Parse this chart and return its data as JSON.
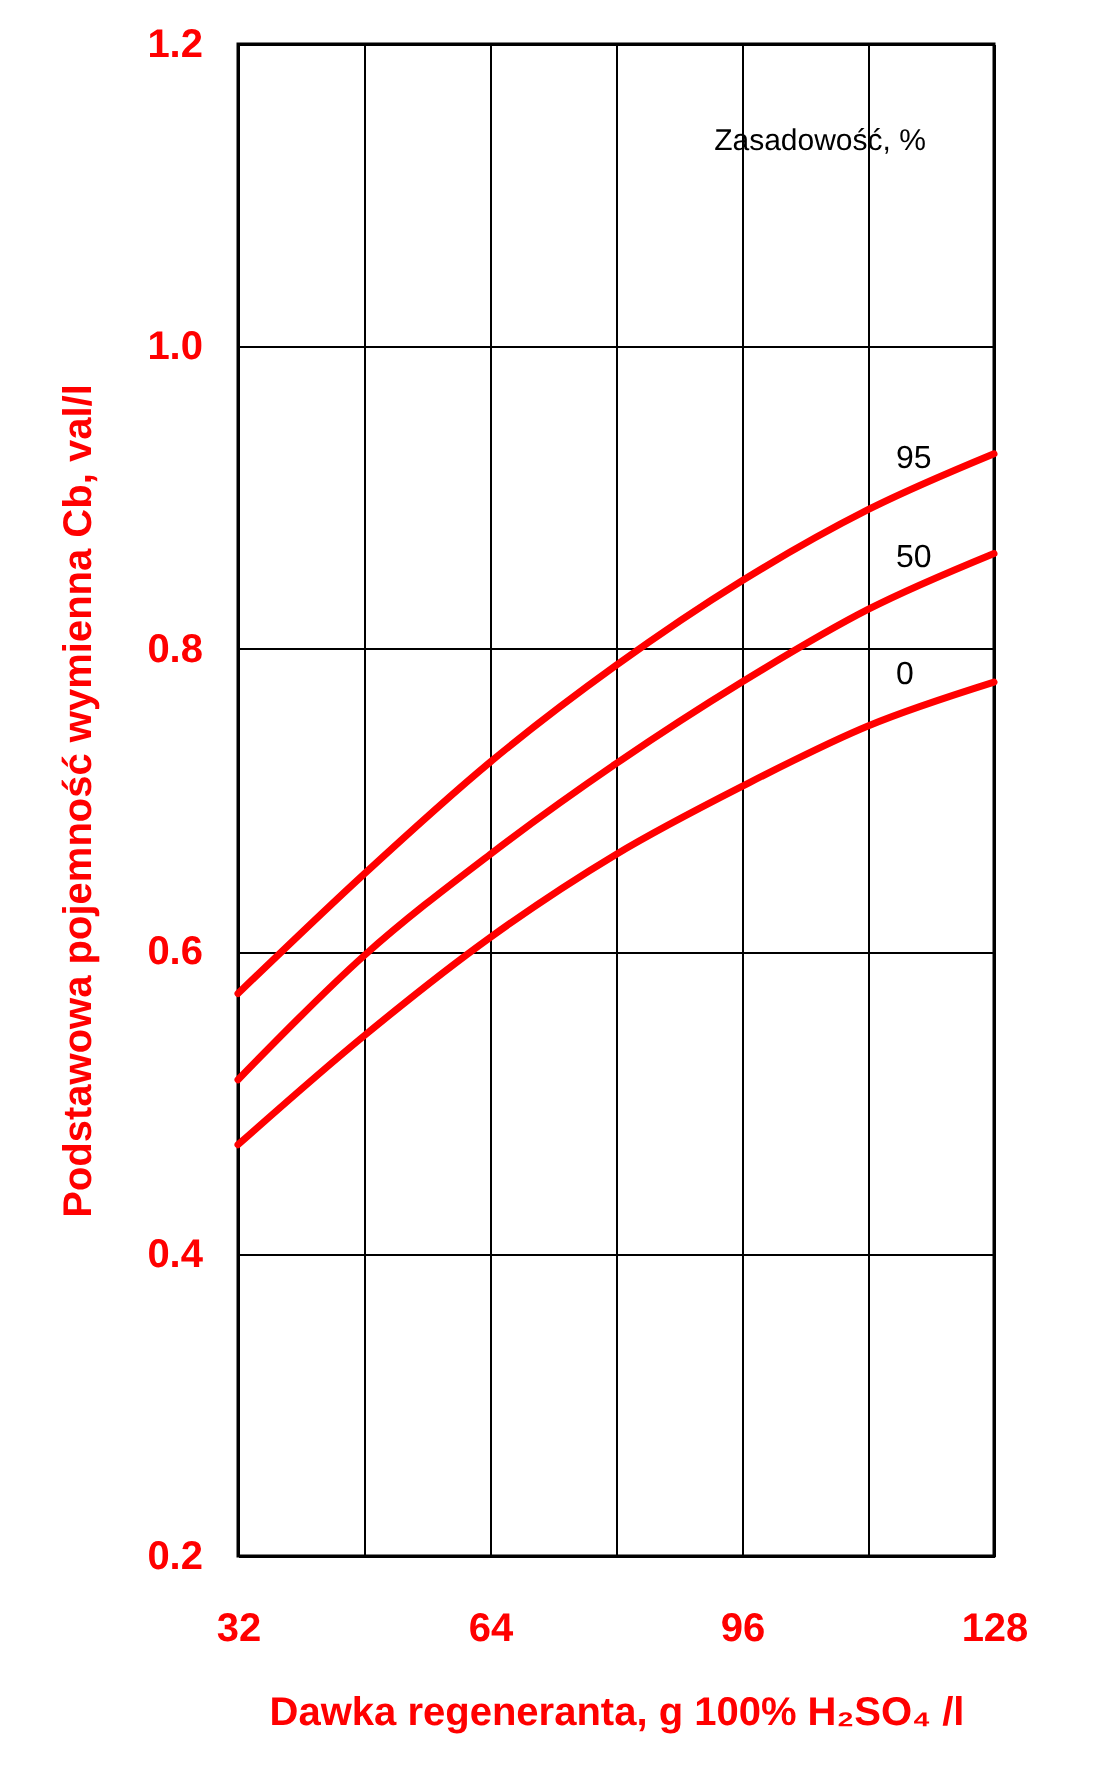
{
  "chart_data": {
    "type": "line",
    "xlabel": "Dawka regeneranta, g 100% H₂SO₄ /l",
    "ylabel": "Podstawowa pojemność wymienna Cb, val/l",
    "legend_title": "Zasadowość, %",
    "x": [
      32,
      48,
      64,
      80,
      96,
      112,
      128
    ],
    "series": [
      {
        "name": "95",
        "color": "#ff0000",
        "values": [
          0.572,
          0.651,
          0.725,
          0.789,
          0.845,
          0.892,
          0.929
        ]
      },
      {
        "name": "50",
        "color": "#ff0000",
        "values": [
          0.515,
          0.597,
          0.664,
          0.724,
          0.778,
          0.826,
          0.863
        ]
      },
      {
        "name": "0",
        "color": "#ff0000",
        "values": [
          0.472,
          0.544,
          0.609,
          0.664,
          0.709,
          0.749,
          0.778
        ]
      }
    ],
    "xlim": [
      32,
      128
    ],
    "xticks": [
      32,
      {
        "value": 48,
        "label": null
      },
      64,
      {
        "value": 80,
        "label": null
      },
      96,
      {
        "value": 112,
        "label": null
      },
      128
    ],
    "ylim": [
      0.2,
      1.2
    ],
    "yticks": [
      0.2,
      0.4,
      0.6,
      0.8,
      {
        "value": 1,
        "label": "1.0"
      },
      1.2
    ],
    "grid": true,
    "marker": "none",
    "line_style": "solid"
  }
}
